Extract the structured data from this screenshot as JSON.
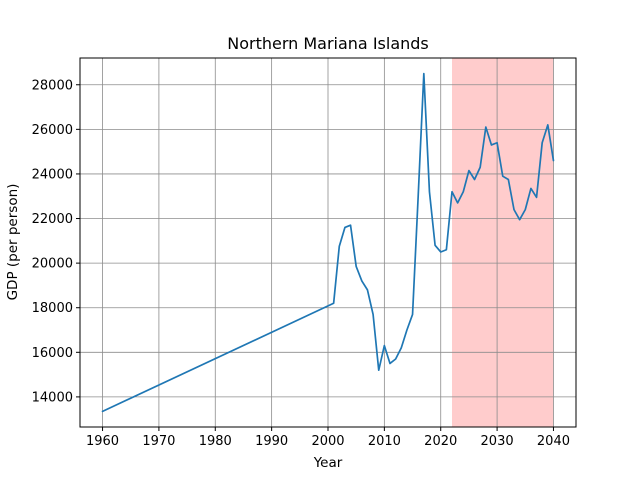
{
  "chart_data": {
    "type": "line",
    "title": "Northern Mariana Islands",
    "xlabel": "Year",
    "ylabel": "GDP (per person)",
    "xlim": [
      1956,
      2044
    ],
    "ylim": [
      12650,
      29200
    ],
    "xticks": [
      1960,
      1970,
      1980,
      1990,
      2000,
      2010,
      2020,
      2030,
      2040
    ],
    "yticks": [
      14000,
      16000,
      18000,
      20000,
      22000,
      24000,
      26000,
      28000
    ],
    "grid": true,
    "line_color": "#1f77b4",
    "highlight": {
      "x_start": 2022,
      "x_end": 2040,
      "color": "#ffcccc"
    },
    "series": [
      {
        "x": [
          1960,
          2001,
          2002,
          2003,
          2004,
          2005,
          2006,
          2007,
          2008,
          2009,
          2010,
          2011,
          2012,
          2013,
          2014,
          2015,
          2016,
          2017,
          2018,
          2019,
          2020,
          2021,
          2022,
          2023,
          2024,
          2025,
          2026,
          2027,
          2028,
          2029,
          2030,
          2031,
          2032,
          2033,
          2034,
          2035,
          2036,
          2037,
          2038,
          2039,
          2040
        ],
        "values": [
          13350,
          18200,
          20750,
          21600,
          21700,
          19850,
          19200,
          18800,
          17700,
          15200,
          16300,
          15500,
          15700,
          16200,
          17000,
          17700,
          23000,
          28500,
          23200,
          20800,
          20500,
          20600,
          23200,
          22700,
          23200,
          24150,
          23750,
          24300,
          26100,
          25300,
          25400,
          23900,
          23750,
          22400,
          21950,
          22400,
          23350,
          22950,
          25400,
          26200,
          24600
        ]
      }
    ]
  }
}
